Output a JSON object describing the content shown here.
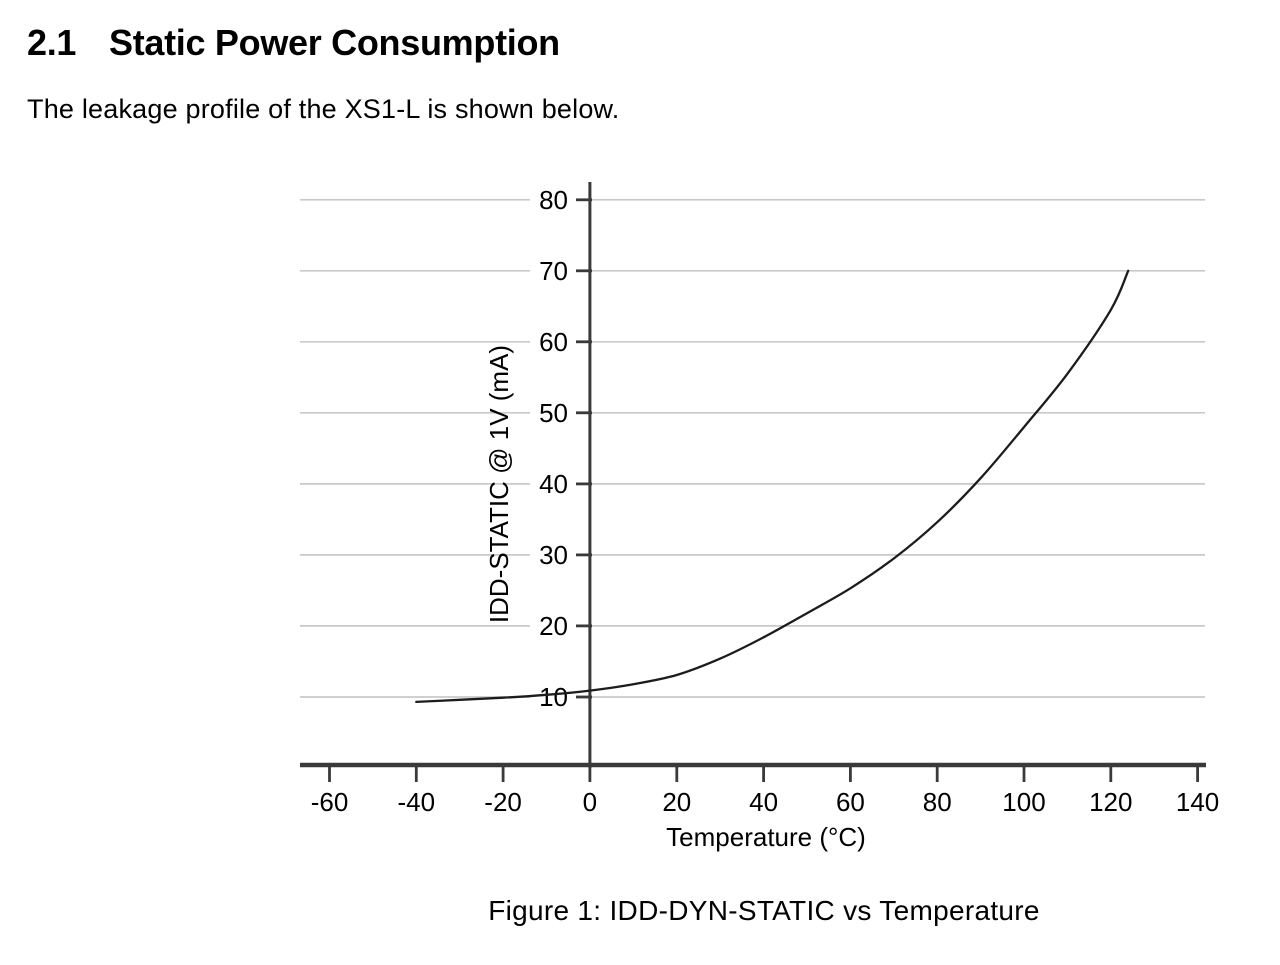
{
  "document": {
    "section_number": "2.1",
    "section_title": "Static Power Consumption",
    "body_text": "The leakage profile of the XS1-L is shown below.",
    "figure_caption": "Figure 1: IDD-DYN-STATIC vs Temperature"
  },
  "chart_data": {
    "type": "line",
    "title": "",
    "xlabel": "Temperature (°C)",
    "ylabel": "IDD-STATIC @ 1V (mA)",
    "x_ticks": [
      -60,
      -40,
      -20,
      0,
      20,
      40,
      60,
      80,
      100,
      120,
      140
    ],
    "y_ticks": [
      10,
      20,
      30,
      40,
      50,
      60,
      70,
      80
    ],
    "xlim": [
      -66.8,
      141.7
    ],
    "ylim": [
      0,
      82.5
    ],
    "grid": "horizontal-only",
    "legend": "none",
    "colors": {
      "curve": "#1c1c1c",
      "axis": "#3a3a3a",
      "grid": "#c9c9c9",
      "text": "#000000",
      "background": "#ffffff"
    },
    "series": [
      {
        "name": "IDD-STATIC @ 1V",
        "points": [
          [
            -40,
            9.3
          ],
          [
            -30,
            9.6
          ],
          [
            -20,
            9.9
          ],
          [
            -10,
            10.3
          ],
          [
            0,
            10.9
          ],
          [
            10,
            11.8
          ],
          [
            20,
            13.1
          ],
          [
            30,
            15.4
          ],
          [
            40,
            18.4
          ],
          [
            50,
            21.8
          ],
          [
            60,
            25.3
          ],
          [
            70,
            29.5
          ],
          [
            80,
            34.6
          ],
          [
            90,
            40.8
          ],
          [
            100,
            48.0
          ],
          [
            110,
            55.5
          ],
          [
            120,
            64.5
          ],
          [
            124,
            70.0
          ]
        ]
      }
    ]
  }
}
